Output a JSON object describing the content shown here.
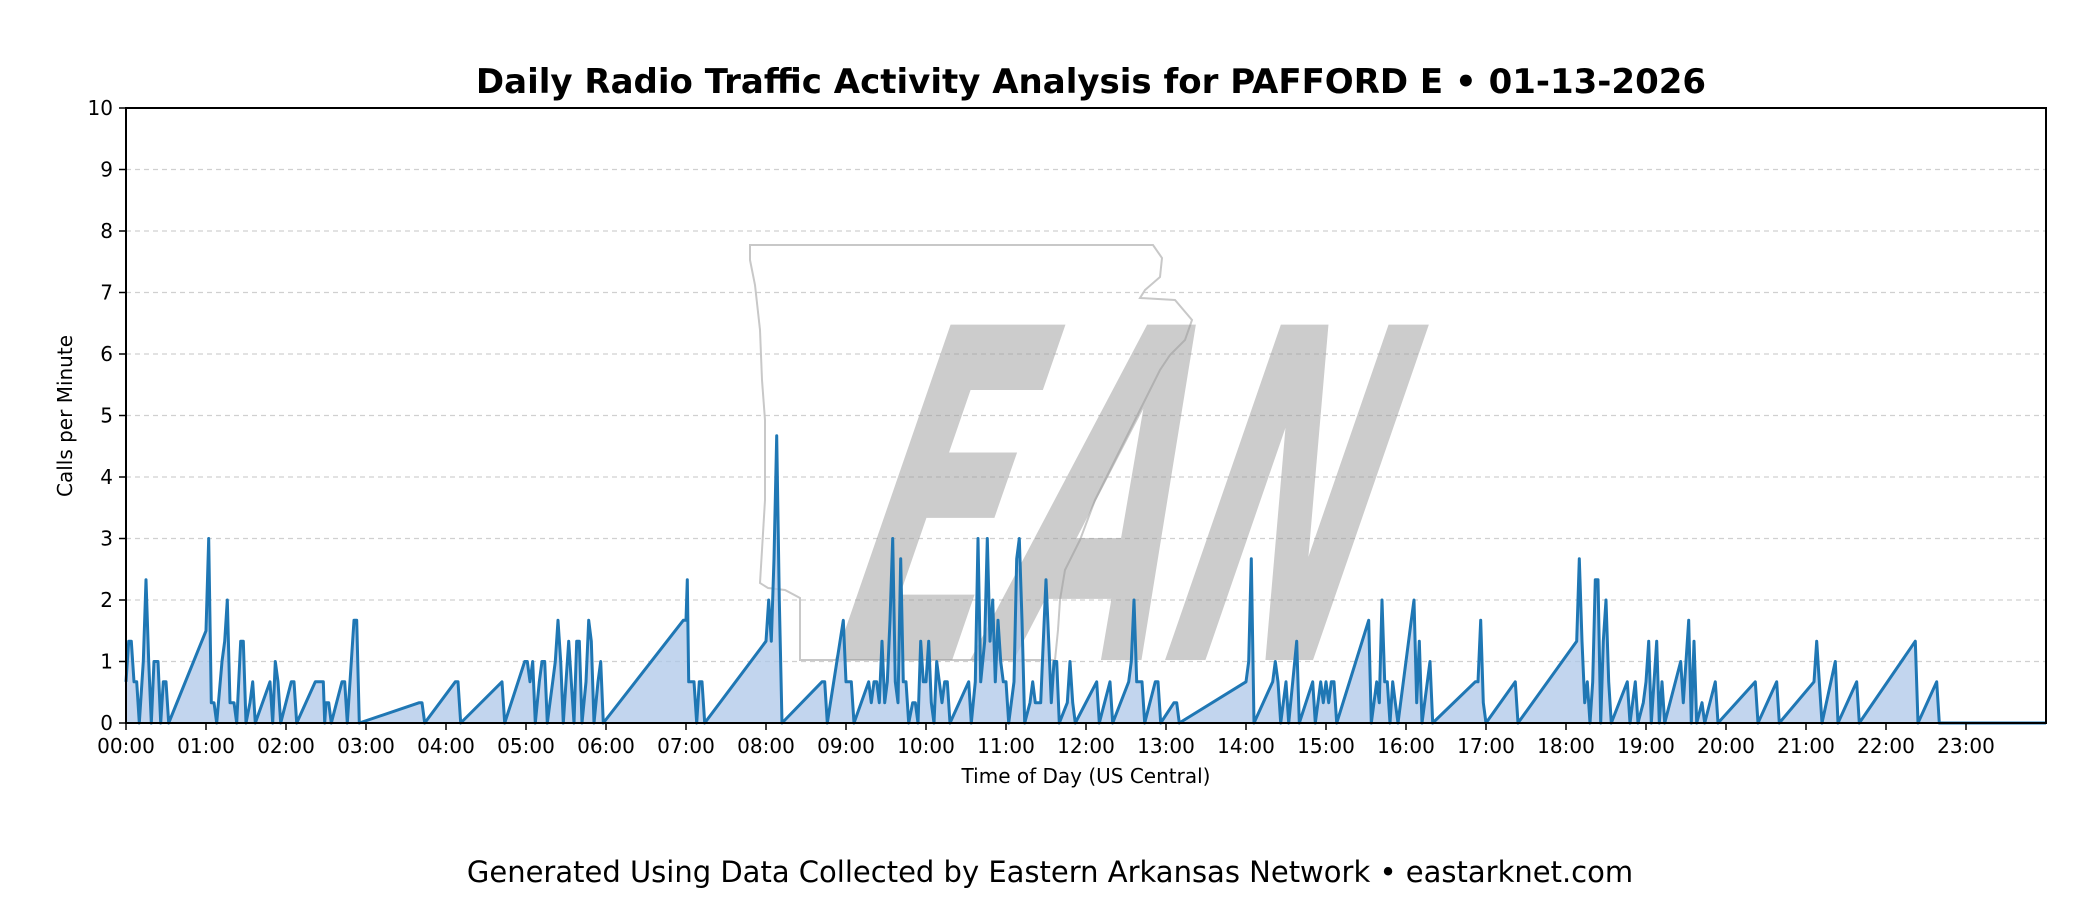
{
  "chart_data": {
    "type": "area",
    "title": "Daily Radio Traffic Activity Analysis for PAFFORD E • 01-13-2026",
    "xlabel": "Time of Day (US Central)",
    "ylabel": "Calls per Minute",
    "xlim": [
      "00:00",
      "24:00"
    ],
    "ylim": [
      0,
      10
    ],
    "yticks": [
      "0",
      "1",
      "2",
      "3",
      "4",
      "5",
      "6",
      "7",
      "8",
      "9",
      "10"
    ],
    "xticks": [
      "00:00",
      "01:00",
      "02:00",
      "03:00",
      "04:00",
      "05:00",
      "06:00",
      "07:00",
      "08:00",
      "09:00",
      "10:00",
      "11:00",
      "12:00",
      "13:00",
      "14:00",
      "15:00",
      "16:00",
      "17:00",
      "18:00",
      "19:00",
      "20:00",
      "21:00",
      "22:00",
      "23:00"
    ],
    "grid": "horizontal dashed",
    "line_color": "#1f77b4",
    "fill_color": "#aec7e8",
    "series": [
      {
        "points": [
          [
            "00:00",
            0.67
          ],
          [
            "00:02",
            1.33
          ],
          [
            "00:04",
            1.33
          ],
          [
            "00:06",
            0.67
          ],
          [
            "00:08",
            0.67
          ],
          [
            "00:10",
            0
          ],
          [
            "00:13",
            1.0
          ],
          [
            "00:15",
            2.33
          ],
          [
            "00:17",
            1.0
          ],
          [
            "00:19",
            0
          ],
          [
            "00:21",
            1.0
          ],
          [
            "00:24",
            1.0
          ],
          [
            "00:26",
            0
          ],
          [
            "00:28",
            0.67
          ],
          [
            "00:30",
            0.67
          ],
          [
            "00:32",
            0
          ],
          [
            "01:00",
            1.5
          ],
          [
            "01:02",
            3.0
          ],
          [
            "01:04",
            0.33
          ],
          [
            "01:06",
            0.33
          ],
          [
            "01:08",
            0
          ],
          [
            "01:12",
            1.0
          ],
          [
            "01:14",
            1.33
          ],
          [
            "01:16",
            2.0
          ],
          [
            "01:18",
            0.33
          ],
          [
            "01:21",
            0.33
          ],
          [
            "01:23",
            0
          ],
          [
            "01:26",
            1.33
          ],
          [
            "01:28",
            1.33
          ],
          [
            "01:30",
            0
          ],
          [
            "01:33",
            0.33
          ],
          [
            "01:35",
            0.67
          ],
          [
            "01:37",
            0
          ],
          [
            "01:48",
            0.67
          ],
          [
            "01:50",
            0
          ],
          [
            "01:52",
            1.0
          ],
          [
            "01:54",
            0.67
          ],
          [
            "01:56",
            0
          ],
          [
            "02:04",
            0.67
          ],
          [
            "02:06",
            0.67
          ],
          [
            "02:08",
            0
          ],
          [
            "02:22",
            0.67
          ],
          [
            "02:28",
            0.67
          ],
          [
            "02:29",
            0
          ],
          [
            "02:30",
            0.33
          ],
          [
            "02:32",
            0.33
          ],
          [
            "02:34",
            0
          ],
          [
            "02:42",
            0.67
          ],
          [
            "02:44",
            0.67
          ],
          [
            "02:46",
            0
          ],
          [
            "02:51",
            1.67
          ],
          [
            "02:53",
            1.67
          ],
          [
            "02:55",
            0
          ],
          [
            "03:40",
            0.33
          ],
          [
            "03:42",
            0.33
          ],
          [
            "03:44",
            0
          ],
          [
            "04:07",
            0.67
          ],
          [
            "04:09",
            0.67
          ],
          [
            "04:11",
            0
          ],
          [
            "04:42",
            0.67
          ],
          [
            "04:44",
            0
          ],
          [
            "04:59",
            1.0
          ],
          [
            "05:01",
            1.0
          ],
          [
            "05:03",
            0.67
          ],
          [
            "05:05",
            1.0
          ],
          [
            "05:07",
            0
          ],
          [
            "05:10",
            0.67
          ],
          [
            "05:12",
            1.0
          ],
          [
            "05:14",
            1.0
          ],
          [
            "05:16",
            0
          ],
          [
            "05:20",
            0.67
          ],
          [
            "05:22",
            1.0
          ],
          [
            "05:24",
            1.67
          ],
          [
            "05:26",
            1.0
          ],
          [
            "05:28",
            0
          ],
          [
            "05:30",
            0.67
          ],
          [
            "05:32",
            1.33
          ],
          [
            "05:34",
            0.67
          ],
          [
            "05:36",
            0
          ],
          [
            "05:38",
            1.33
          ],
          [
            "05:40",
            1.33
          ],
          [
            "05:42",
            0
          ],
          [
            "05:45",
            0.67
          ],
          [
            "05:47",
            1.67
          ],
          [
            "05:49",
            1.33
          ],
          [
            "05:51",
            0
          ],
          [
            "05:54",
            0.67
          ],
          [
            "05:56",
            1.0
          ],
          [
            "05:58",
            0
          ],
          [
            "06:58",
            1.67
          ],
          [
            "07:00",
            1.67
          ],
          [
            "07:01",
            2.33
          ],
          [
            "07:02",
            0.67
          ],
          [
            "07:06",
            0.67
          ],
          [
            "07:08",
            0
          ],
          [
            "07:10",
            0.67
          ],
          [
            "07:12",
            0.67
          ],
          [
            "07:14",
            0
          ],
          [
            "08:00",
            1.33
          ],
          [
            "08:02",
            2.0
          ],
          [
            "08:04",
            1.33
          ],
          [
            "08:06",
            2.67
          ],
          [
            "08:08",
            4.67
          ],
          [
            "08:10",
            2.0
          ],
          [
            "08:12",
            0
          ],
          [
            "08:42",
            0.67
          ],
          [
            "08:44",
            0.67
          ],
          [
            "08:46",
            0
          ],
          [
            "08:58",
            1.67
          ],
          [
            "09:00",
            0.67
          ],
          [
            "09:04",
            0.67
          ],
          [
            "09:06",
            0
          ],
          [
            "09:17",
            0.67
          ],
          [
            "09:19",
            0.33
          ],
          [
            "09:21",
            0.67
          ],
          [
            "09:23",
            0.67
          ],
          [
            "09:25",
            0.33
          ],
          [
            "09:27",
            1.33
          ],
          [
            "09:29",
            0.33
          ],
          [
            "09:31",
            0.67
          ],
          [
            "09:33",
            1.67
          ],
          [
            "09:35",
            3.0
          ],
          [
            "09:37",
            0.67
          ],
          [
            "09:39",
            0.33
          ],
          [
            "09:41",
            2.67
          ],
          [
            "09:43",
            0.67
          ],
          [
            "09:45",
            0.67
          ],
          [
            "09:47",
            0
          ],
          [
            "09:50",
            0.33
          ],
          [
            "09:52",
            0.33
          ],
          [
            "09:54",
            0
          ],
          [
            "09:56",
            1.33
          ],
          [
            "09:58",
            0.67
          ],
          [
            "10:00",
            0.67
          ],
          [
            "10:02",
            1.33
          ],
          [
            "10:04",
            0.33
          ],
          [
            "10:06",
            0
          ],
          [
            "10:08",
            1.0
          ],
          [
            "10:10",
            0.67
          ],
          [
            "10:12",
            0.33
          ],
          [
            "10:14",
            0.67
          ],
          [
            "10:16",
            0.67
          ],
          [
            "10:18",
            0
          ],
          [
            "10:32",
            0.67
          ],
          [
            "10:34",
            0
          ],
          [
            "10:37",
            0.67
          ],
          [
            "10:39",
            3.0
          ],
          [
            "10:41",
            0.67
          ],
          [
            "10:44",
            1.33
          ],
          [
            "10:46",
            3.0
          ],
          [
            "10:48",
            1.33
          ],
          [
            "10:50",
            2.0
          ],
          [
            "10:52",
            0.67
          ],
          [
            "10:54",
            1.67
          ],
          [
            "10:56",
            1.0
          ],
          [
            "10:58",
            0.67
          ],
          [
            "11:00",
            0.67
          ],
          [
            "11:02",
            0
          ],
          [
            "11:06",
            0.67
          ],
          [
            "11:08",
            2.67
          ],
          [
            "11:10",
            3.0
          ],
          [
            "11:12",
            1.67
          ],
          [
            "11:14",
            0
          ],
          [
            "11:18",
            0.33
          ],
          [
            "11:20",
            0.67
          ],
          [
            "11:22",
            0.33
          ],
          [
            "11:24",
            0.33
          ],
          [
            "11:26",
            0.33
          ],
          [
            "11:28",
            1.33
          ],
          [
            "11:30",
            2.33
          ],
          [
            "11:32",
            1.33
          ],
          [
            "11:34",
            0.33
          ],
          [
            "11:36",
            1.0
          ],
          [
            "11:38",
            1.0
          ],
          [
            "11:40",
            0
          ],
          [
            "11:46",
            0.33
          ],
          [
            "11:48",
            1.0
          ],
          [
            "11:50",
            0.33
          ],
          [
            "11:52",
            0
          ],
          [
            "12:08",
            0.67
          ],
          [
            "12:10",
            0
          ],
          [
            "12:18",
            0.67
          ],
          [
            "12:20",
            0
          ],
          [
            "12:32",
            0.67
          ],
          [
            "12:34",
            1.0
          ],
          [
            "12:36",
            2.0
          ],
          [
            "12:38",
            0.67
          ],
          [
            "12:40",
            0.67
          ],
          [
            "12:42",
            0.67
          ],
          [
            "12:44",
            0
          ],
          [
            "12:52",
            0.67
          ],
          [
            "12:54",
            0.67
          ],
          [
            "12:56",
            0
          ],
          [
            "13:06",
            0.33
          ],
          [
            "13:08",
            0.33
          ],
          [
            "13:10",
            0
          ],
          [
            "14:00",
            0.67
          ],
          [
            "14:02",
            1.0
          ],
          [
            "14:04",
            2.67
          ],
          [
            "14:06",
            0
          ],
          [
            "14:20",
            0.67
          ],
          [
            "14:22",
            1.0
          ],
          [
            "14:24",
            0.67
          ],
          [
            "14:26",
            0
          ],
          [
            "14:30",
            0.67
          ],
          [
            "14:32",
            0
          ],
          [
            "14:38",
            1.33
          ],
          [
            "14:40",
            0
          ],
          [
            "14:50",
            0.67
          ],
          [
            "14:52",
            0
          ],
          [
            "14:56",
            0.67
          ],
          [
            "14:58",
            0.33
          ],
          [
            "15:00",
            0.67
          ],
          [
            "15:02",
            0.33
          ],
          [
            "15:04",
            0.67
          ],
          [
            "15:06",
            0.67
          ],
          [
            "15:08",
            0
          ],
          [
            "15:32",
            1.67
          ],
          [
            "15:34",
            0
          ],
          [
            "15:38",
            0.67
          ],
          [
            "15:40",
            0.33
          ],
          [
            "15:42",
            2.0
          ],
          [
            "15:44",
            0.67
          ],
          [
            "15:46",
            0.67
          ],
          [
            "15:48",
            0
          ],
          [
            "15:50",
            0.67
          ],
          [
            "15:52",
            0.33
          ],
          [
            "15:54",
            0
          ],
          [
            "16:04",
            1.67
          ],
          [
            "16:06",
            2.0
          ],
          [
            "16:08",
            0.33
          ],
          [
            "16:10",
            1.33
          ],
          [
            "16:12",
            0
          ],
          [
            "16:18",
            1.0
          ],
          [
            "16:20",
            0
          ],
          [
            "16:52",
            0.67
          ],
          [
            "16:54",
            0.67
          ],
          [
            "16:56",
            1.67
          ],
          [
            "16:58",
            0.33
          ],
          [
            "17:00",
            0
          ],
          [
            "17:22",
            0.67
          ],
          [
            "17:24",
            0
          ],
          [
            "18:08",
            1.33
          ],
          [
            "18:10",
            2.67
          ],
          [
            "18:12",
            1.33
          ],
          [
            "18:14",
            0.33
          ],
          [
            "18:16",
            0.67
          ],
          [
            "18:18",
            0
          ],
          [
            "18:20",
            0.67
          ],
          [
            "18:22",
            2.33
          ],
          [
            "18:24",
            2.33
          ],
          [
            "18:26",
            0
          ],
          [
            "18:28",
            1.33
          ],
          [
            "18:30",
            2.0
          ],
          [
            "18:32",
            0.67
          ],
          [
            "18:34",
            0
          ],
          [
            "18:46",
            0.67
          ],
          [
            "18:48",
            0
          ],
          [
            "18:52",
            0.67
          ],
          [
            "18:54",
            0
          ],
          [
            "18:58",
            0.33
          ],
          [
            "19:00",
            0.67
          ],
          [
            "19:02",
            1.33
          ],
          [
            "19:04",
            0
          ],
          [
            "19:08",
            1.33
          ],
          [
            "19:10",
            0
          ],
          [
            "19:12",
            0.67
          ],
          [
            "19:14",
            0
          ],
          [
            "19:26",
            1.0
          ],
          [
            "19:28",
            0.33
          ],
          [
            "19:30",
            1.0
          ],
          [
            "19:32",
            1.67
          ],
          [
            "19:34",
            0
          ],
          [
            "19:36",
            1.33
          ],
          [
            "19:38",
            0
          ],
          [
            "19:42",
            0.33
          ],
          [
            "19:44",
            0
          ],
          [
            "19:52",
            0.67
          ],
          [
            "19:54",
            0
          ],
          [
            "20:22",
            0.67
          ],
          [
            "20:24",
            0
          ],
          [
            "20:38",
            0.67
          ],
          [
            "20:40",
            0
          ],
          [
            "21:06",
            0.67
          ],
          [
            "21:08",
            1.33
          ],
          [
            "21:10",
            0.67
          ],
          [
            "21:12",
            0
          ],
          [
            "21:22",
            1.0
          ],
          [
            "21:24",
            0
          ],
          [
            "21:38",
            0.67
          ],
          [
            "21:40",
            0
          ],
          [
            "22:22",
            1.33
          ],
          [
            "22:24",
            0
          ],
          [
            "22:38",
            0.67
          ],
          [
            "22:40",
            0
          ],
          [
            "24:00",
            0
          ]
        ]
      }
    ]
  },
  "footer_text": "Generated Using Data Collected by Eastern Arkansas Network • eastarknet.com",
  "watermark": {
    "text": "EAN",
    "icon": "arkansas-state-outline"
  }
}
